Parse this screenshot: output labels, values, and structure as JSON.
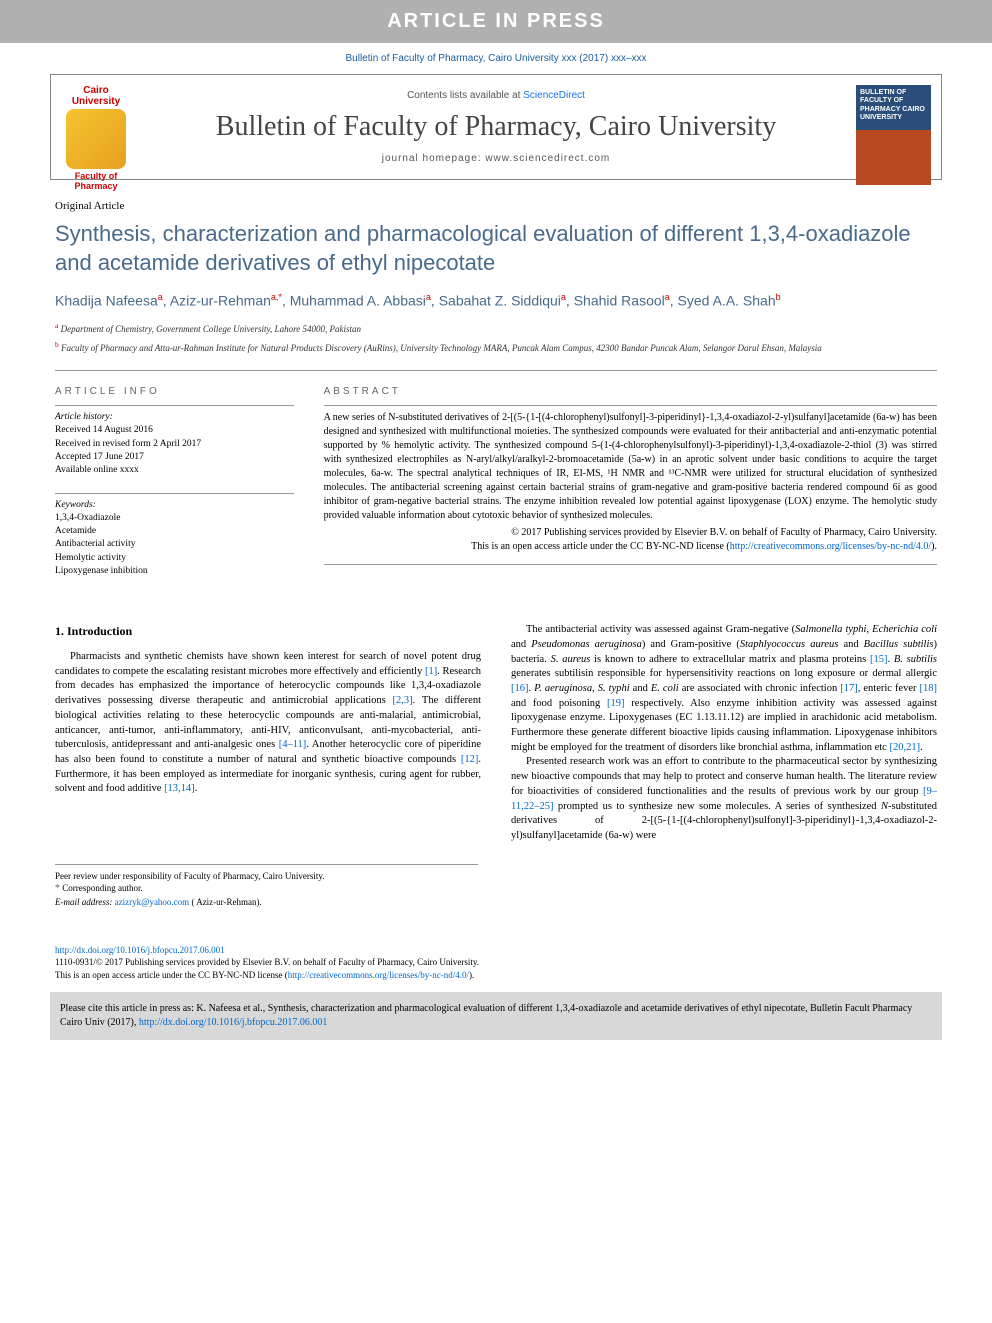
{
  "banner": {
    "text": "ARTICLE IN PRESS"
  },
  "citation_top": "Bulletin of Faculty of Pharmacy, Cairo University xxx (2017) xxx–xxx",
  "header": {
    "contents_prefix": "Contents lists available at ",
    "contents_link": "ScienceDirect",
    "journal": "Bulletin of Faculty of Pharmacy, Cairo University",
    "homepage": "journal homepage: www.sciencedirect.com",
    "logo_left": {
      "top": "Cairo University",
      "bottom": "Faculty of Pharmacy"
    },
    "cover_text": "BULLETIN OF FACULTY OF PHARMACY CAIRO UNIVERSITY"
  },
  "article": {
    "type": "Original Article",
    "title": "Synthesis, characterization and pharmacological evaluation of different 1,3,4-oxadiazole and acetamide derivatives of ethyl nipecotate",
    "authors_html": "Khadija Nafeesa<sup>a</sup>, Aziz-ur-Rehman<sup>a,*</sup>, Muhammad A. Abbasi<sup>a</sup>, Sabahat Z. Siddiqui<sup>a</sup>, Shahid Rasool<sup>a</sup>, Syed A.A. Shah<sup>b</sup>",
    "affiliations": [
      {
        "sup": "a",
        "text": "Department of Chemistry, Government College University, Lahore 54000, Pakistan"
      },
      {
        "sup": "b",
        "text": "Faculty of Pharmacy and Atta-ur-Rahman Institute for Natural Products Discovery (AuRins), University Technology MARA, Puncak Alam Campus, 42300 Bandar Puncak Alam, Selangor Darul Ehsan, Malaysia"
      }
    ]
  },
  "info": {
    "header": "ARTICLE INFO",
    "history_label": "Article history:",
    "history": [
      "Received 14 August 2016",
      "Received in revised form 2 April 2017",
      "Accepted 17 June 2017",
      "Available online xxxx"
    ],
    "keywords_label": "Keywords:",
    "keywords": [
      "1,3,4-Oxadiazole",
      "Acetamide",
      "Antibacterial activity",
      "Hemolytic activity",
      "Lipoxygenase inhibition"
    ]
  },
  "abstract": {
    "header": "ABSTRACT",
    "body": "A new series of N-substituted derivatives of 2-[(5-{1-[(4-chlorophenyl)sulfonyl]-3-piperidinyl}-1,3,4-oxadiazol-2-yl)sulfanyl]acetamide (6a-w) has been designed and synthesized with multifunctional moieties. The synthesized compounds were evaluated for their antibacterial and anti-enzymatic potential supported by % hemolytic activity. The synthesized compound 5-(1-(4-chlorophenylsulfonyl)-3-piperidinyl)-1,3,4-oxadiazole-2-thiol (3) was stirred with synthesized electrophiles as N-aryl/alkyl/aralkyl-2-bromoacetamide (5a-w) in an aprotic solvent under basic conditions to acquire the target molecules, 6a-w. The spectral analytical techniques of IR, EI-MS, ¹H NMR and ¹³C-NMR were utilized for structural elucidation of synthesized molecules. The antibacterial screening against certain bacterial strains of gram-negative and gram-positive bacteria rendered compound 6i as good inhibitor of gram-negative bacterial strains. The enzyme inhibition revealed low potential against lipoxygenase (LOX) enzyme. The hemolytic study provided valuable information about cytotoxic behavior of synthesized molecules.",
    "copyright": "© 2017 Publishing services provided by Elsevier B.V. on behalf of Faculty of Pharmacy, Cairo University.",
    "license_prefix": "This is an open access article under the CC BY-NC-ND license (",
    "license_url": "http://creativecommons.org/licenses/by-nc-nd/4.0/",
    "license_suffix": ")."
  },
  "intro": {
    "heading": "1. Introduction",
    "p1": "Pharmacists and synthetic chemists have shown keen interest for search of novel potent drug candidates to compete the escalating resistant microbes more effectively and efficiently [1]. Research from decades has emphasized the importance of heterocyclic compounds like 1,3,4-oxadiazole derivatives possessing diverse therapeutic and antimicrobial applications [2,3]. The different biological activities relating to these heterocyclic compounds are anti-malarial, antimicrobial, anticancer, anti-tumor, anti-inflammatory, anti-HIV, anticonvulsant, anti-mycobacterial, anti-tuberculosis, antidepressant and anti-analgesic ones [4–11]. Another heterocyclic core of piperidine has also been found to constitute a number of natural and synthetic bioactive compounds [12]. Furthermore, it has been employed as intermediate for inorganic synthesis, curing agent for rubber, solvent and food additive [13,14].",
    "p2": "The antibacterial activity was assessed against Gram-negative (Salmonella typhi, Echerichia coli and Pseudomonas aeruginosa) and Gram-positive (Staphlyococcus aureus and Bacillus subtilis) bacteria. S. aureus is known to adhere to extracellular matrix and plasma proteins [15]. B. subtilis generates subtilisin responsible for hypersensitivity reactions on long exposure or dermal allergic [16]. P. aeruginosa, S. typhi and E. coli are associated with chronic infection [17], enteric fever [18] and food poisoning [19] respectively. Also enzyme inhibition activity was assessed against lipoxygenase enzyme. Lipoxygenases (EC 1.13.11.12) are implied in arachidonic acid metabolism. Furthermore these generate different bioactive lipids causing inflammation. Lipoxygenase inhibitors might be employed for the treatment of disorders like bronchial asthma, inflammation etc [20,21].",
    "p3": "Presented research work was an effort to contribute to the pharmaceutical sector by synthesizing new bioactive compounds that may help to protect and conserve human health. The literature review for bioactivities of considered functionalities and the results of previous work by our group [9–11,22–25] prompted us to synthesize new some molecules. A series of synthesized N-substituted derivatives of 2-[(5-{1-[(4-chlorophenyl)sulfonyl]-3-piperidinyl}-1,3,4-oxadiazol-2-yl)sulfanyl]acetamide (6a-w) were"
  },
  "footnotes": {
    "peer": "Peer review under responsibility of Faculty of Pharmacy, Cairo University.",
    "corresponding": "Corresponding author.",
    "email_label": "E-mail address: ",
    "email": "azizryk@yahoo.com",
    "email_suffix": " ( Aziz-ur-Rehman)."
  },
  "doi": {
    "url": "http://dx.doi.org/10.1016/j.bfopcu.2017.06.001",
    "issn_line": "1110-0931/© 2017 Publishing services provided by Elsevier B.V. on behalf of Faculty of Pharmacy, Cairo University.",
    "license_line": "This is an open access article under the CC BY-NC-ND license (",
    "license_url": "http://creativecommons.org/licenses/by-nc-nd/4.0/",
    "license_suffix": ")."
  },
  "cite_box": {
    "text": "Please cite this article in press as: K. Nafeesa et al., Synthesis, characterization and pharmacological evaluation of different 1,3,4-oxadiazole and acetamide derivatives of ethyl nipecotate, Bulletin Facult Pharmacy Cairo Univ (2017), ",
    "url": "http://dx.doi.org/10.1016/j.bfopcu.2017.06.001"
  },
  "colors": {
    "banner_bg": "#b0b0b0",
    "link": "#0066cc",
    "title": "#4a6a8a",
    "sup": "#c00"
  }
}
